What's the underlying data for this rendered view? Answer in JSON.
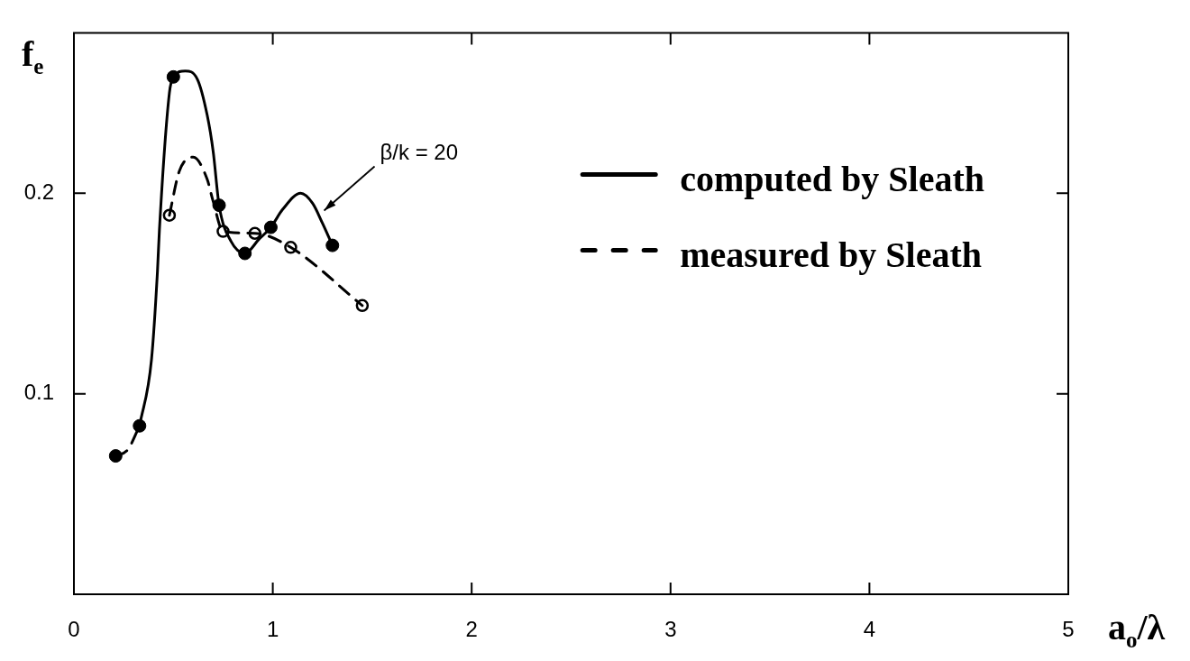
{
  "chart_data": {
    "type": "line",
    "xlabel": "a$_{o}$/λ",
    "ylabel": "f$_{e}$",
    "xlim": [
      0,
      5
    ],
    "ylim": [
      0,
      0.28
    ],
    "xticks": [
      0,
      1,
      2,
      3,
      4,
      5
    ],
    "yticks": [
      0.1,
      0.2
    ],
    "legend": "top right",
    "grid": false,
    "annotations": [
      {
        "text": "β/k = 20",
        "x": 1.24,
        "y": 0.19
      }
    ],
    "series": [
      {
        "name": "computed by Sleath",
        "color": "#000000",
        "line_style": "solid",
        "marker": "none",
        "x": [
          0.33,
          0.39,
          0.42,
          0.43,
          0.48,
          0.5,
          0.56,
          0.62,
          0.67,
          0.7,
          0.73,
          0.79,
          0.86,
          0.93,
          0.99,
          1.05,
          1.14,
          1.2,
          1.25,
          1.3
        ],
        "values": [
          0.084,
          0.117,
          0.161,
          0.182,
          0.25,
          0.258,
          0.261,
          0.257,
          0.239,
          0.221,
          0.194,
          0.176,
          0.17,
          0.177,
          0.183,
          0.192,
          0.2,
          0.195,
          0.185,
          0.174
        ]
      },
      {
        "color": "#000000",
        "line_style": "dashed",
        "marker": "none",
        "x": [
          0.21,
          0.27,
          0.33
        ],
        "values": [
          0.069,
          0.072,
          0.084
        ]
      },
      {
        "name": "measured by Sleath",
        "color": "#000000",
        "line_style": "dashed",
        "marker": "none",
        "x": [
          0.48,
          0.53,
          0.6,
          0.67,
          0.7,
          0.75,
          0.91,
          1.09,
          1.45
        ],
        "values": [
          0.189,
          0.211,
          0.218,
          0.207,
          0.196,
          0.181,
          0.18,
          0.173,
          0.144
        ]
      },
      {
        "type": "scatter",
        "color": "#000000",
        "marker": "circle",
        "x": [
          0.21,
          0.33,
          0.5,
          0.73,
          0.86,
          0.99,
          1.3
        ],
        "values": [
          0.069,
          0.084,
          0.258,
          0.194,
          0.17,
          0.183,
          0.174
        ]
      },
      {
        "type": "scatter",
        "color": "#000000",
        "marker": "circle-open",
        "x": [
          0.48,
          0.75,
          0.91,
          1.09,
          1.45
        ],
        "values": [
          0.189,
          0.181,
          0.18,
          0.173,
          0.144
        ]
      }
    ]
  }
}
